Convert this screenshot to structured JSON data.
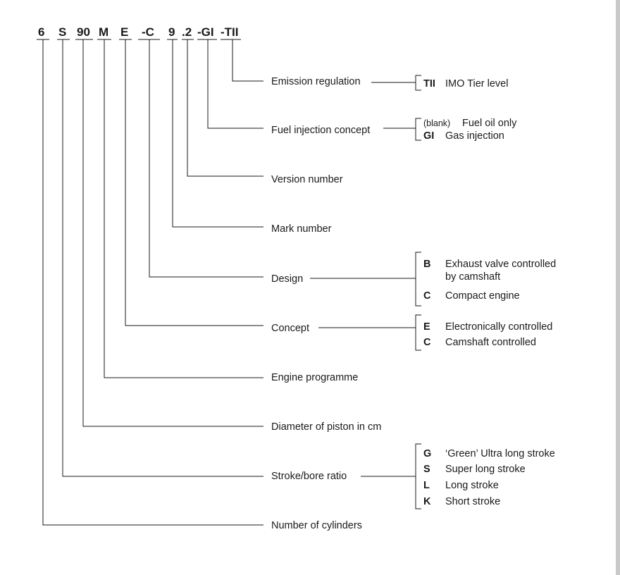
{
  "designation": {
    "segments": [
      {
        "id": "cylinders",
        "text": "6"
      },
      {
        "id": "stroke",
        "text": "S"
      },
      {
        "id": "diameter",
        "text": "90"
      },
      {
        "id": "programme",
        "text": "M"
      },
      {
        "id": "concept",
        "text": "E"
      },
      {
        "id": "design",
        "text": "-C"
      },
      {
        "id": "mark",
        "text": "9"
      },
      {
        "id": "version",
        "text": ".2"
      },
      {
        "id": "fuel",
        "text": "-GI"
      },
      {
        "id": "emission",
        "text": "-TII"
      }
    ]
  },
  "labels": {
    "emission": "Emission regulation",
    "fuel": "Fuel injection concept",
    "version": "Version number",
    "mark": "Mark number",
    "design": "Design",
    "concept": "Concept",
    "programme": "Engine programme",
    "diameter": "Diameter of piston in cm",
    "stroke": "Stroke/bore ratio",
    "cylinders": "Number of cylinders"
  },
  "options": {
    "emission": [
      {
        "key": "TII",
        "text": "IMO Tier level"
      }
    ],
    "fuel": [
      {
        "key": "(blank)",
        "text": "Fuel oil only"
      },
      {
        "key": "GI",
        "text": "Gas injection"
      }
    ],
    "design": [
      {
        "key": "B",
        "text": "Exhaust valve controlled",
        "text2": "by camshaft"
      },
      {
        "key": "C",
        "text": "Compact engine"
      }
    ],
    "concept": [
      {
        "key": "E",
        "text": "Electronically controlled"
      },
      {
        "key": "C",
        "text": "Camshaft controlled"
      }
    ],
    "stroke": [
      {
        "key": "G",
        "text": "‘Green’ Ultra long stroke"
      },
      {
        "key": "S",
        "text": "Super long stroke"
      },
      {
        "key": "L",
        "text": "Long stroke"
      },
      {
        "key": "K",
        "text": "Short stroke"
      }
    ]
  }
}
